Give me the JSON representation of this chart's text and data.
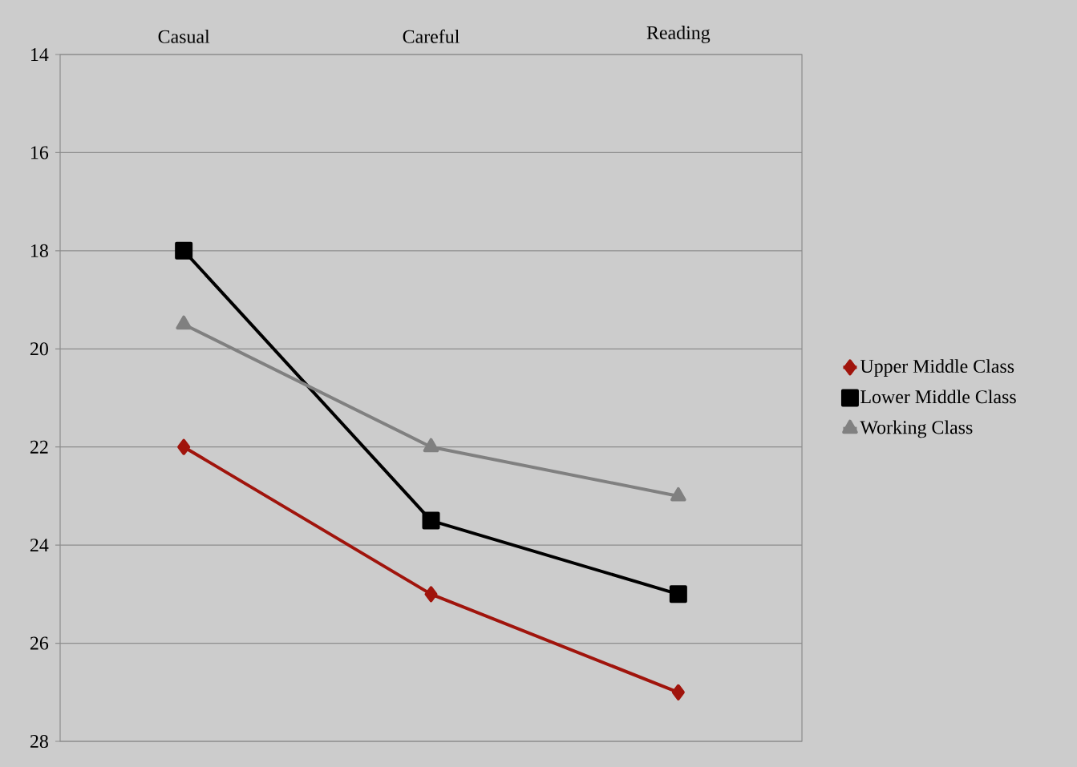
{
  "chart_data": {
    "type": "line",
    "categories": [
      "Casual",
      "Careful",
      "Reading"
    ],
    "series": [
      {
        "name": "Upper Middle Class",
        "color": "#a0140c",
        "marker": "diamond",
        "values": [
          22,
          25,
          27
        ]
      },
      {
        "name": "Lower Middle Class",
        "color": "#000000",
        "marker": "square",
        "values": [
          18,
          23.5,
          25
        ]
      },
      {
        "name": "Working Class",
        "color": "#808080",
        "marker": "triangle",
        "values": [
          19.5,
          22,
          23
        ]
      }
    ],
    "ylim": [
      28,
      14
    ],
    "yticks": [
      14,
      16,
      18,
      20,
      22,
      24,
      26,
      28
    ],
    "grid": "y",
    "legend": "right"
  }
}
